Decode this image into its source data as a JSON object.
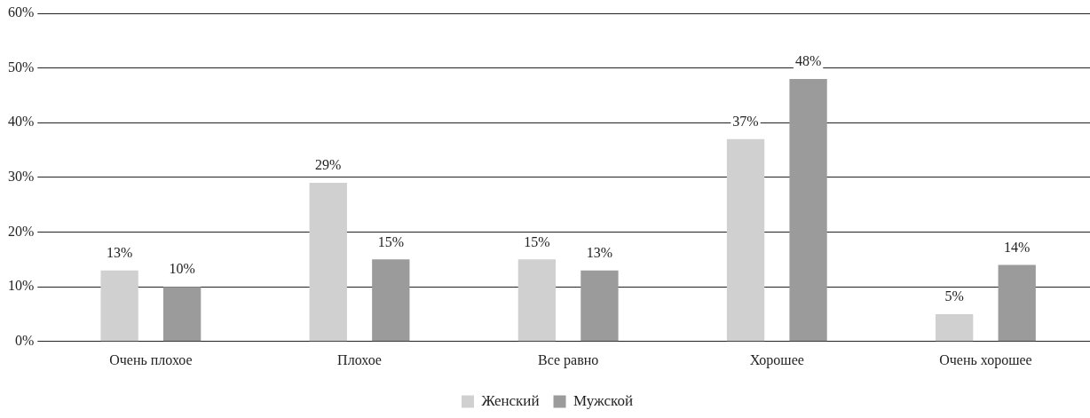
{
  "chart_data": {
    "type": "bar",
    "categories": [
      "Очень плохое",
      "Плохое",
      "Все равно",
      "Хорошее",
      "Очень хорошее"
    ],
    "series": [
      {
        "name": "Женский",
        "color": "#d0d0d0",
        "values": [
          13,
          29,
          15,
          37,
          5
        ],
        "value_labels": [
          "13%",
          "29%",
          "15%",
          "37%",
          "5%"
        ]
      },
      {
        "name": "Мужской",
        "color": "#9b9b9b",
        "values": [
          10,
          15,
          13,
          48,
          14
        ],
        "value_labels": [
          "10%",
          "15%",
          "13%",
          "48%",
          "14%"
        ]
      }
    ],
    "ylim": [
      0,
      60
    ],
    "yticks": [
      {
        "value": 0,
        "label": "0%"
      },
      {
        "value": 10,
        "label": "10%"
      },
      {
        "value": 20,
        "label": "20%"
      },
      {
        "value": 30,
        "label": "30%"
      },
      {
        "value": 40,
        "label": "40%"
      },
      {
        "value": 50,
        "label": "50%"
      },
      {
        "value": 60,
        "label": "60%"
      }
    ],
    "grid": "y",
    "legend": "bottom"
  }
}
